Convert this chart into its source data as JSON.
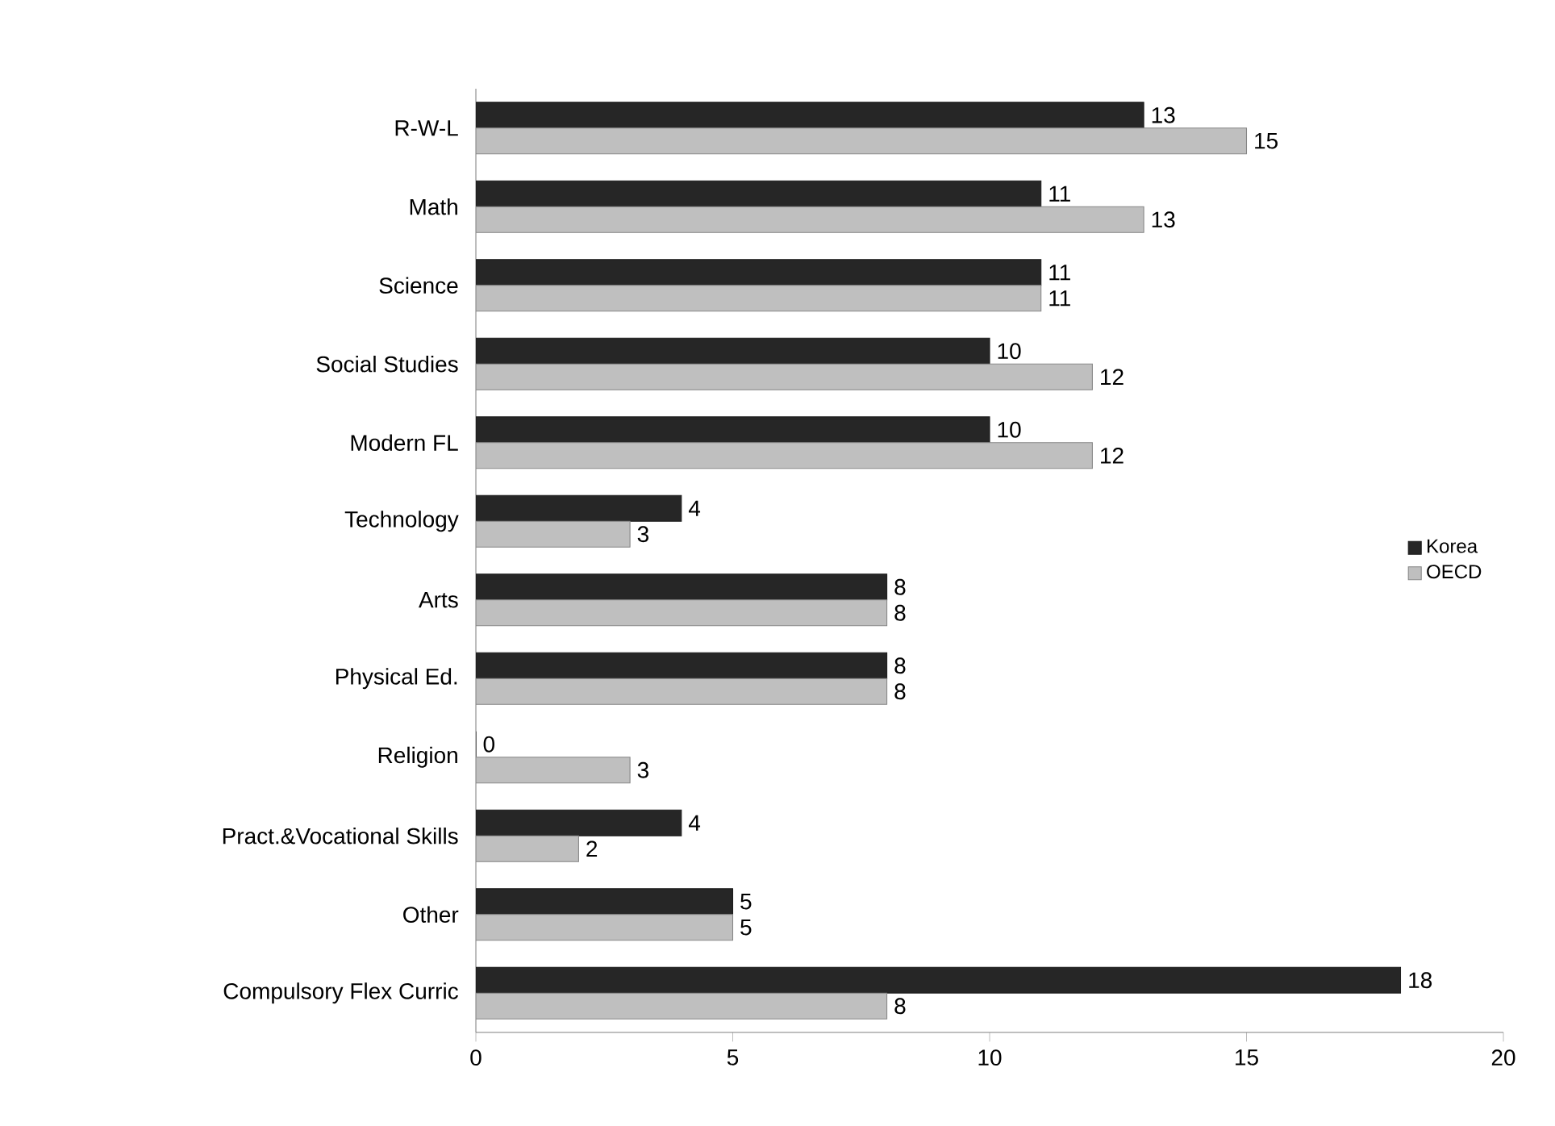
{
  "chart_data": {
    "type": "bar",
    "orientation": "horizontal",
    "categories": [
      "R-W-L",
      "Math",
      "Science",
      "Social Studies",
      "Modern FL",
      "Technology",
      "Arts",
      "Physical Ed.",
      "Religion",
      "Pract.&Vocational Skills",
      "Other",
      "Compulsory Flex Curric"
    ],
    "series": [
      {
        "name": "Korea",
        "color": "#262626",
        "values": [
          13,
          11,
          11,
          10,
          10,
          4,
          8,
          8,
          0,
          4,
          5,
          18
        ]
      },
      {
        "name": "OECD",
        "color": "#bfbfbf",
        "values": [
          15,
          13,
          11,
          12,
          12,
          3,
          8,
          8,
          3,
          2,
          5,
          8
        ]
      }
    ],
    "xlim": [
      0,
      20
    ],
    "xticks": [
      0,
      5,
      10,
      15,
      20
    ],
    "data_labels": true,
    "legend": "right",
    "grid": false
  }
}
